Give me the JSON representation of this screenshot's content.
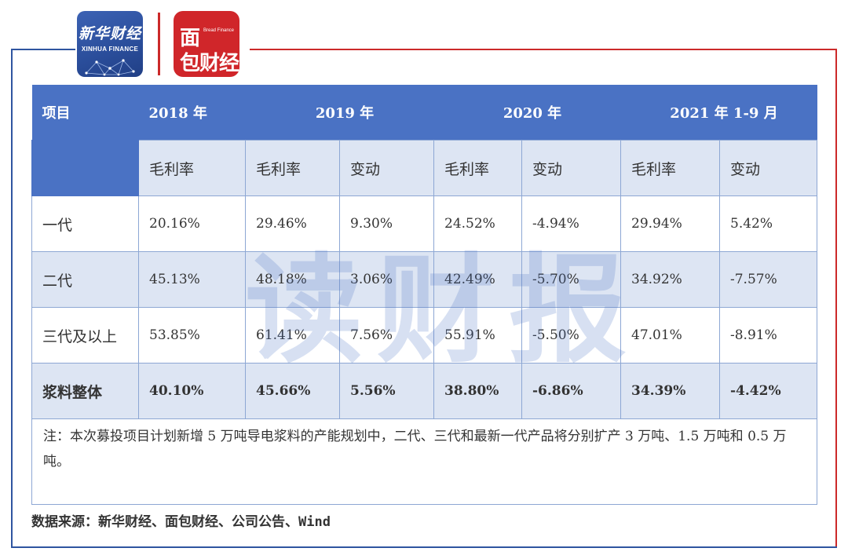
{
  "logos": {
    "xinhua_cn": "新华财经",
    "xinhua_en": "XINHUA FINANCE",
    "mianbao_top": "面",
    "mianbao_sub": "Bread Finance",
    "mianbao_bottom": "包财经"
  },
  "table": {
    "header": [
      "项目",
      "2018 年",
      "2019 年",
      "2020 年",
      "2021 年 1-9 月"
    ],
    "subheader": [
      "毛利率",
      "毛利率",
      "变动",
      "毛利率",
      "变动",
      "毛利率",
      "变动"
    ],
    "rows": [
      {
        "label": "一代",
        "values": [
          "20.16%",
          "29.46%",
          "9.30%",
          "24.52%",
          "-4.94%",
          "29.94%",
          "5.42%"
        ]
      },
      {
        "label": "二代",
        "values": [
          "45.13%",
          "48.18%",
          "3.06%",
          "42.49%",
          "-5.70%",
          "34.92%",
          "-7.57%"
        ]
      },
      {
        "label": "三代及以上",
        "values": [
          "53.85%",
          "61.41%",
          "7.56%",
          "55.91%",
          "-5.50%",
          "47.01%",
          "-8.91%"
        ]
      },
      {
        "label": "浆料整体",
        "values": [
          "40.10%",
          "45.66%",
          "5.56%",
          "38.80%",
          "-6.86%",
          "34.39%",
          "-4.42%"
        ]
      }
    ],
    "note": "注：本次募投项目计划新增 5 万吨导电浆料的产能规划中，二代、三代和最新一代产品将分别扩产 3 万吨、1.5 万吨和 0.5 万吨。"
  },
  "watermark": "读财报",
  "source": "数据来源：新华财经、面包财经、公司公告、Wind",
  "colors": {
    "header_blue": "#4a72c4",
    "row_blue": "#dde5f3",
    "frame_blue": "#2f55a0",
    "frame_red": "#cc2a2a"
  }
}
